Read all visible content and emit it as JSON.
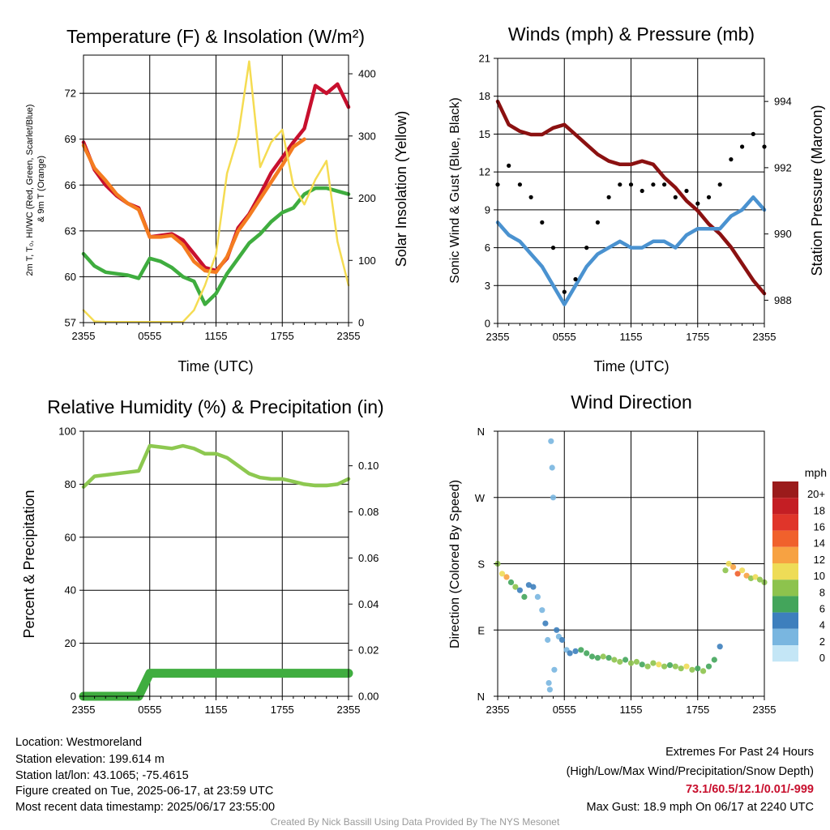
{
  "footer": {
    "location": "Location: Westmoreland",
    "elevation": "Station elevation: 199.614 m",
    "latlon": "Station lat/lon: 43.1065; -75.4615",
    "created": "Figure created on Tue, 2025-06-17, at 23:59 UTC",
    "latest": "Most recent data timestamp: 2025/06/17 23:55:00",
    "extremes_title": "Extremes For Past 24 Hours",
    "extremes_legend": "(High/Low/Max Wind/Precipitation/Snow Depth)",
    "extremes_values": "73.1/60.5/12.1/0.01/-999",
    "max_gust": "Max Gust: 18.9 mph On 06/17 at 2240 UTC",
    "credit": "Created By Nick Bassill Using Data Provided By The NYS Mesonet",
    "extremes_color": "#c8102e"
  },
  "chart_data": [
    {
      "type": "line",
      "title": "Temperature (F) & Insolation (W/m²)",
      "xlabel": "Time (UTC)",
      "ylabel": "2m T, Td, HI/WC (Red, Green, Scarlet/Blue) & 9m T (Orange)",
      "y2label": "Solar Insolation (Yellow)",
      "x_ticks": [
        "2355",
        "0555",
        "1155",
        "1755",
        "2355"
      ],
      "x": [
        0,
        1,
        2,
        3,
        4,
        5,
        6,
        7,
        8,
        9,
        10,
        11,
        12,
        13,
        14,
        15,
        16,
        17,
        18,
        19,
        20,
        21,
        22,
        23,
        24
      ],
      "ylim": [
        57,
        74.5
      ],
      "yticks": [
        57,
        60,
        63,
        66,
        69,
        72
      ],
      "y2lim": [
        0,
        430
      ],
      "y2ticks": [
        0,
        100,
        200,
        300,
        400
      ],
      "grid": true,
      "series": [
        {
          "color": "#c8102e",
          "axis": "left",
          "values": [
            68.8,
            67,
            66,
            65.3,
            64.8,
            64.5,
            62.6,
            62.7,
            62.8,
            62.4,
            61.5,
            60.6,
            60.4,
            61.2,
            63.2,
            64.1,
            65.4,
            66.8,
            67.8,
            68.8,
            69.7,
            72.5,
            72,
            72.6,
            71.1
          ]
        },
        {
          "color": "#f47c20",
          "axis": "left",
          "values": [
            68.6,
            67.1,
            66.3,
            65.4,
            64.8,
            64.4,
            62.6,
            62.6,
            62.7,
            62.1,
            61.0,
            60.4,
            60.3,
            61.3,
            63.0,
            64.0,
            65.1,
            66.2,
            67.3,
            68.5,
            69.0,
            null,
            null,
            null,
            null
          ]
        },
        {
          "color": "#3fad3f",
          "axis": "left",
          "values": [
            61.5,
            60.7,
            60.3,
            60.2,
            60.1,
            59.9,
            61.2,
            61.0,
            60.6,
            60.0,
            59.7,
            58.2,
            58.9,
            60.2,
            61.2,
            62.2,
            62.8,
            63.6,
            64.2,
            64.5,
            65.4,
            65.8,
            65.8,
            65.6,
            65.4
          ]
        },
        {
          "color": "#f5dc52",
          "axis": "right",
          "values": [
            20,
            2,
            1,
            1,
            1,
            1,
            1,
            1,
            1,
            1,
            20,
            60,
            110,
            240,
            300,
            420,
            250,
            290,
            310,
            220,
            190,
            230,
            260,
            130,
            60
          ]
        }
      ]
    },
    {
      "type": "line",
      "title": "Winds (mph) & Pressure (mb)",
      "xlabel": "Time (UTC)",
      "ylabel": "Sonic Wind & Gust (Blue, Black)",
      "y2label": "Station Pressure (Maroon)",
      "x_ticks": [
        "2355",
        "0555",
        "1155",
        "1755",
        "2355"
      ],
      "x": [
        0,
        1,
        2,
        3,
        4,
        5,
        6,
        7,
        8,
        9,
        10,
        11,
        12,
        13,
        14,
        15,
        16,
        17,
        18,
        19,
        20,
        21,
        22,
        23,
        24
      ],
      "ylim": [
        0,
        21
      ],
      "yticks": [
        0,
        3,
        6,
        9,
        12,
        15,
        18,
        21
      ],
      "y2lim": [
        987.3,
        995.3
      ],
      "y2ticks": [
        988,
        990,
        992,
        994
      ],
      "grid": true,
      "series": [
        {
          "color": "#8b1111",
          "axis": "right",
          "values": [
            994,
            993.3,
            993.1,
            993.0,
            993.0,
            993.2,
            993.3,
            993.0,
            992.7,
            992.4,
            992.2,
            992.1,
            992.1,
            992.2,
            992.1,
            991.7,
            991.4,
            991.0,
            990.7,
            990.3,
            990.0,
            989.6,
            989.1,
            988.6,
            988.2
          ]
        },
        {
          "color": "#4a92d0",
          "axis": "left",
          "values": [
            8,
            7,
            6.5,
            5.5,
            4.5,
            3,
            1.5,
            3,
            4.5,
            5.5,
            6,
            6.5,
            6,
            6,
            6.5,
            6.5,
            6,
            7,
            7.5,
            7.5,
            7.5,
            8.5,
            9,
            10,
            9
          ]
        },
        {
          "color": "#000000",
          "axis": "left",
          "values": [
            11,
            12.5,
            11,
            10,
            8,
            6,
            2.5,
            3.5,
            6,
            8,
            10,
            11,
            11,
            10.5,
            11,
            11,
            10,
            10.5,
            9.5,
            10,
            11,
            13,
            14,
            15,
            14
          ],
          "marker": "dot"
        }
      ]
    },
    {
      "type": "line",
      "title": "Relative Humidity (%) & Precipitation (in)",
      "ylabel": "Percent & Precipitation",
      "x_ticks": [
        "2355",
        "0555",
        "1155",
        "1755",
        "2355"
      ],
      "x": [
        0,
        1,
        2,
        3,
        4,
        5,
        6,
        7,
        8,
        9,
        10,
        11,
        12,
        13,
        14,
        15,
        16,
        17,
        18,
        19,
        20,
        21,
        22,
        23,
        24
      ],
      "ylim": [
        0,
        100
      ],
      "yticks": [
        0,
        20,
        40,
        60,
        80,
        100
      ],
      "y2lim": [
        0,
        0.115
      ],
      "y2ticks": [
        0.0,
        0.02,
        0.04,
        0.06,
        0.08,
        0.1
      ],
      "grid": true,
      "series": [
        {
          "color": "#8dc850",
          "axis": "left",
          "values": [
            79,
            83,
            83.5,
            84,
            84.5,
            85,
            94.5,
            94,
            93.5,
            94.5,
            93.5,
            91.5,
            91.5,
            90,
            87,
            84,
            82.5,
            82,
            82,
            81,
            80,
            79.5,
            79.5,
            80,
            82
          ]
        },
        {
          "color": "#3fad3f",
          "axis": "right",
          "values": [
            0,
            0,
            0,
            0,
            0,
            0,
            0.01,
            0.01,
            0.01,
            0.01,
            0.01,
            0.01,
            0.01,
            0.01,
            0.01,
            0.01,
            0.01,
            0.01,
            0.01,
            0.01,
            0.01,
            0.01,
            0.01,
            0.01,
            0.01
          ]
        }
      ]
    },
    {
      "type": "scatter",
      "title": "Wind Direction",
      "ylabel": "Direction (Colored By Speed)",
      "x_ticks": [
        "2355",
        "0555",
        "1155",
        "1755",
        "2355"
      ],
      "y_ticks": [
        "N",
        "E",
        "S",
        "W",
        "N"
      ],
      "ylim": [
        0,
        400
      ],
      "grid": true,
      "points": [
        [
          0,
          200,
          8
        ],
        [
          0.4,
          185,
          10
        ],
        [
          0.8,
          180,
          12
        ],
        [
          1.2,
          172,
          6
        ],
        [
          1.6,
          165,
          8
        ],
        [
          2,
          160,
          4
        ],
        [
          2.4,
          150,
          6
        ],
        [
          2.8,
          168,
          4
        ],
        [
          3.2,
          165,
          3
        ],
        [
          3.6,
          150,
          2
        ],
        [
          4,
          130,
          2
        ],
        [
          4.3,
          110,
          3
        ],
        [
          4.5,
          85,
          2
        ],
        [
          4.6,
          20,
          1
        ],
        [
          4.7,
          10,
          2
        ],
        [
          4.8,
          385,
          2
        ],
        [
          4.9,
          345,
          2
        ],
        [
          5,
          300,
          1
        ],
        [
          5.1,
          40,
          2
        ],
        [
          5.3,
          100,
          3
        ],
        [
          5.5,
          90,
          2
        ],
        [
          5.8,
          85,
          3
        ],
        [
          6.2,
          70,
          2
        ],
        [
          6.5,
          65,
          3
        ],
        [
          7,
          68,
          4
        ],
        [
          7.5,
          70,
          5
        ],
        [
          8,
          65,
          6
        ],
        [
          8.5,
          60,
          5
        ],
        [
          9,
          58,
          6
        ],
        [
          9.5,
          60,
          7
        ],
        [
          10,
          58,
          6
        ],
        [
          10.5,
          55,
          7
        ],
        [
          11,
          52,
          8
        ],
        [
          11.5,
          55,
          6
        ],
        [
          12,
          50,
          7
        ],
        [
          12.5,
          52,
          8
        ],
        [
          13,
          48,
          6
        ],
        [
          13.5,
          45,
          8
        ],
        [
          14,
          50,
          7
        ],
        [
          14.5,
          48,
          9
        ],
        [
          15,
          45,
          8
        ],
        [
          15.5,
          47,
          6
        ],
        [
          16,
          45,
          7
        ],
        [
          16.5,
          42,
          8
        ],
        [
          17,
          45,
          9
        ],
        [
          17.5,
          40,
          8
        ],
        [
          18,
          42,
          6
        ],
        [
          18.5,
          38,
          7
        ],
        [
          19,
          45,
          6
        ],
        [
          19.5,
          55,
          5
        ],
        [
          20,
          75,
          4
        ],
        [
          20.5,
          190,
          8
        ],
        [
          20.8,
          200,
          10
        ],
        [
          21.2,
          195,
          12
        ],
        [
          21.6,
          185,
          14
        ],
        [
          22,
          190,
          10
        ],
        [
          22.4,
          182,
          12
        ],
        [
          22.8,
          178,
          8
        ],
        [
          23.2,
          180,
          10
        ],
        [
          23.6,
          176,
          8
        ],
        [
          24,
          172,
          8
        ]
      ],
      "colorbar": {
        "label": "mph",
        "ticks": [
          "20+",
          "18",
          "16",
          "14",
          "12",
          "10",
          "8",
          "6",
          "4",
          "2",
          "0"
        ],
        "colors": [
          "#9b1b1b",
          "#c41e24",
          "#e0352a",
          "#f0612c",
          "#f7a242",
          "#eedc57",
          "#8dc34d",
          "#43a55b",
          "#3d7fbd",
          "#79b6e0",
          "#c4e6f6"
        ]
      }
    }
  ]
}
